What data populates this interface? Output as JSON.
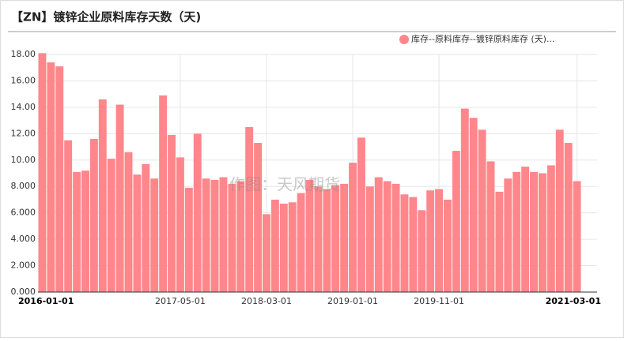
{
  "chart_data": {
    "type": "bar",
    "title": "【ZN】镀锌企业原料库存天数（天)",
    "watermark": "作图：天风期货",
    "categories": [
      "2016-01-01",
      null,
      null,
      null,
      null,
      null,
      null,
      null,
      null,
      null,
      null,
      null,
      null,
      null,
      null,
      null,
      "2017-05-01",
      null,
      null,
      null,
      null,
      null,
      null,
      null,
      null,
      null,
      "2018-03-01",
      null,
      null,
      null,
      null,
      null,
      null,
      null,
      null,
      null,
      "2019-01-01",
      null,
      null,
      null,
      null,
      null,
      null,
      null,
      null,
      null,
      "2019-11-01",
      null,
      null,
      null,
      null,
      null,
      null,
      null,
      null,
      null,
      null,
      null,
      null,
      null,
      null,
      null,
      "2021-03-01"
    ],
    "series": [
      {
        "name": "库存--原料库存--镀锌原料库存 (天)...",
        "color": "#ff868b",
        "values": [
          18.1,
          17.4,
          17.1,
          11.5,
          9.1,
          9.2,
          11.6,
          14.6,
          10.1,
          14.2,
          10.6,
          8.9,
          9.7,
          8.6,
          14.9,
          11.9,
          10.2,
          7.9,
          12.0,
          8.6,
          8.5,
          8.7,
          8.2,
          8.4,
          12.5,
          11.3,
          5.9,
          7.0,
          6.7,
          6.8,
          7.5,
          8.5,
          8.0,
          7.8,
          8.1,
          8.2,
          9.8,
          11.7,
          8.0,
          8.7,
          8.4,
          8.2,
          7.4,
          7.2,
          6.2,
          7.7,
          7.8,
          7.0,
          10.7,
          13.9,
          13.2,
          12.3,
          9.9,
          7.6,
          8.6,
          9.1,
          9.5,
          9.1,
          9.0,
          9.6,
          12.3,
          11.3,
          8.4
        ]
      }
    ],
    "ylim": [
      0,
      18
    ],
    "yticks": [
      {
        "value": 0,
        "label": "0.000"
      },
      {
        "value": 2,
        "label": "2.000"
      },
      {
        "value": 4,
        "label": "4.000"
      },
      {
        "value": 6,
        "label": "6.000"
      },
      {
        "value": 8,
        "label": "8.000"
      },
      {
        "value": 10,
        "label": "10.00"
      },
      {
        "value": 12,
        "label": "12.00"
      },
      {
        "value": 14,
        "label": "14.00"
      },
      {
        "value": 16,
        "label": "16.00"
      },
      {
        "value": 18,
        "label": "18.00"
      }
    ],
    "grid": true,
    "legend": "top-right"
  }
}
